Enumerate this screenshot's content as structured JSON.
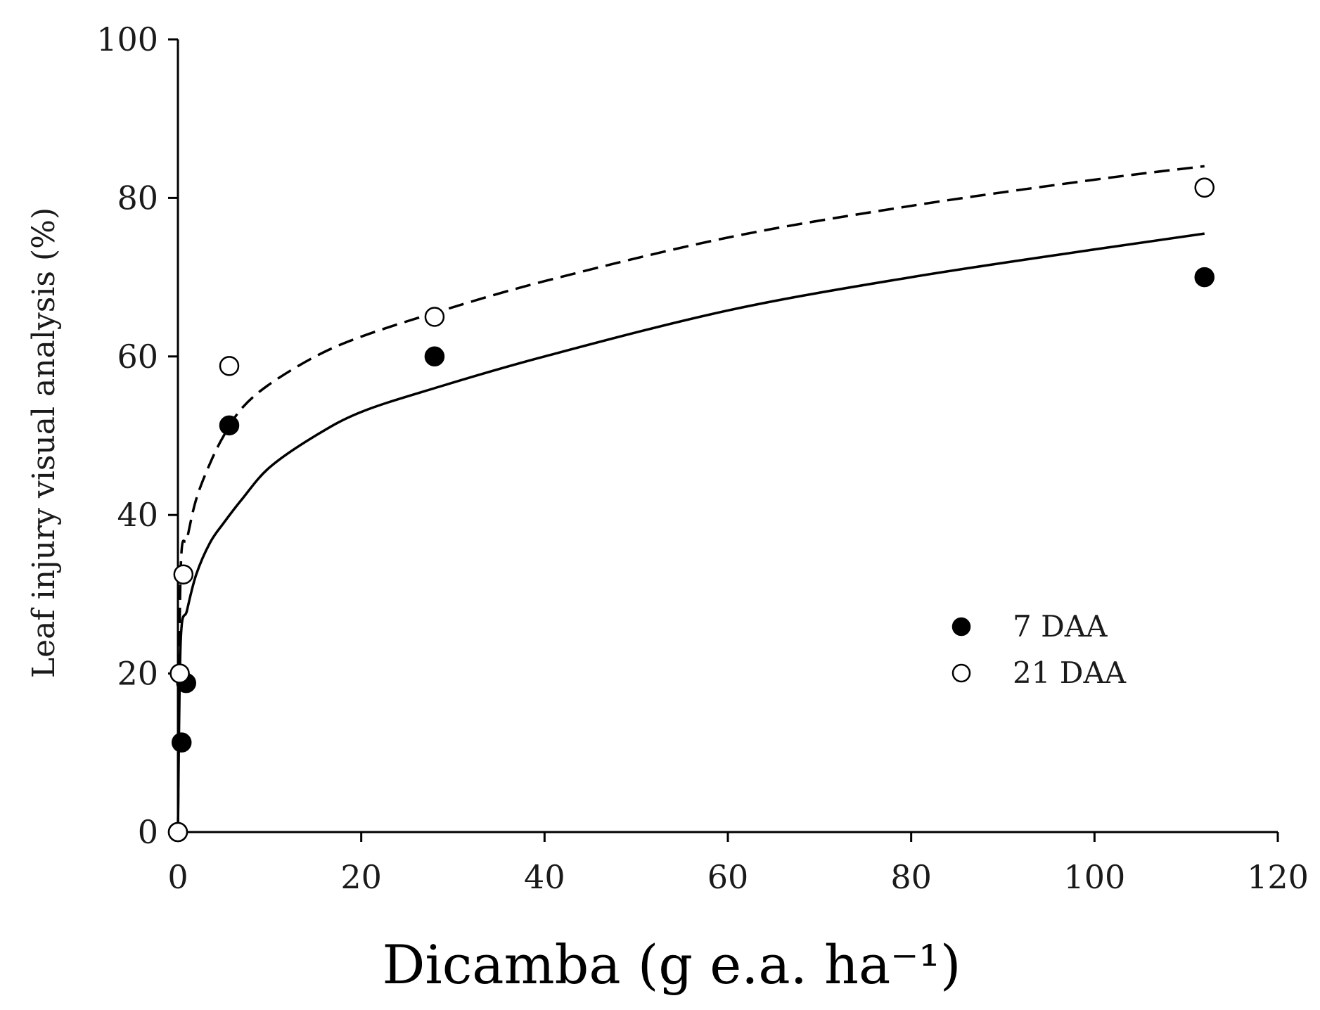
{
  "chart_data": {
    "type": "scatter",
    "xlabel": "Dicamba (g e.a. ha⁻¹)",
    "ylabel": "Leaf injury visual analysis (%)",
    "xlim": [
      0,
      120
    ],
    "ylim": [
      0,
      100
    ],
    "xticks": [
      0,
      20,
      40,
      60,
      80,
      100,
      120
    ],
    "yticks": [
      0,
      20,
      40,
      60,
      80,
      100
    ],
    "grid": false,
    "legend_position": "right",
    "series": [
      {
        "name": "7 DAA",
        "marker": "filled-circle",
        "fit_line": "solid",
        "x": [
          0,
          0.4,
          0.9,
          5.6,
          28,
          112
        ],
        "y": [
          0,
          11.3,
          18.8,
          51.3,
          60,
          70
        ],
        "fit_curve": {
          "x": [
            0,
            0.3,
            1,
            2,
            3.5,
            5,
            7,
            10,
            15,
            20,
            28,
            40,
            60,
            80,
            100,
            112
          ],
          "y": [
            0,
            24,
            28,
            32.5,
            36.5,
            39,
            42,
            46,
            50,
            53,
            56,
            60,
            65.8,
            70,
            73.5,
            75.5
          ]
        }
      },
      {
        "name": "21 DAA",
        "marker": "open-circle",
        "fit_line": "dashed",
        "x": [
          0,
          0.2,
          0.6,
          5.6,
          28,
          112
        ],
        "y": [
          0,
          20,
          32.5,
          58.8,
          65,
          81.3
        ],
        "fit_curve": {
          "x": [
            0,
            0.3,
            1,
            2,
            3.5,
            5,
            7,
            10,
            15,
            20,
            28,
            40,
            60,
            80,
            100,
            112
          ],
          "y": [
            0,
            33,
            37,
            42,
            46.5,
            50,
            53.5,
            56.5,
            60,
            62.5,
            65.5,
            69.5,
            75,
            79,
            82.3,
            84
          ]
        }
      }
    ]
  }
}
